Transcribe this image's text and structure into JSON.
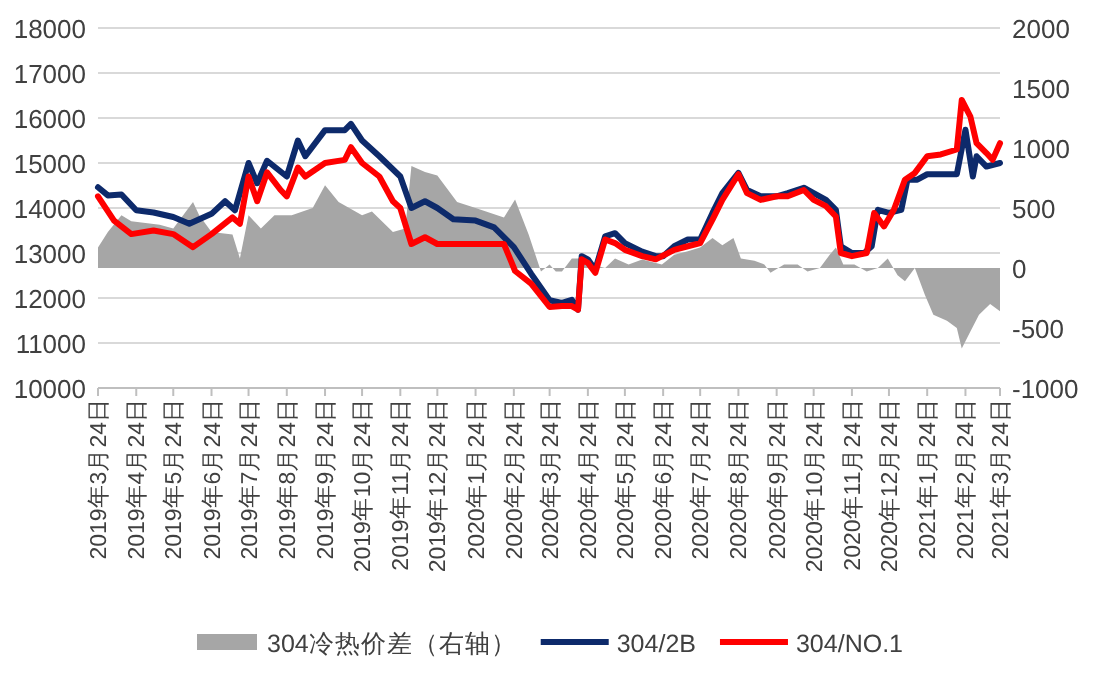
{
  "chart_data": {
    "type": "line",
    "grid": "y",
    "legend": "bottom",
    "xlim": [
      "2019-03-24",
      "2021-03-24"
    ],
    "xticks": [
      {
        "value": "2019-03-24",
        "label": "2019年3月24日"
      },
      {
        "value": "2019-04-24",
        "label": "2019年4月24日"
      },
      {
        "value": "2019-05-24",
        "label": "2019年5月24日"
      },
      {
        "value": "2019-06-24",
        "label": "2019年6月24日"
      },
      {
        "value": "2019-07-24",
        "label": "2019年7月24日"
      },
      {
        "value": "2019-08-24",
        "label": "2019年8月24日"
      },
      {
        "value": "2019-09-24",
        "label": "2019年9月24日"
      },
      {
        "value": "2019-10-24",
        "label": "2019年10月24日"
      },
      {
        "value": "2019-11-24",
        "label": "2019年11月24日"
      },
      {
        "value": "2019-12-24",
        "label": "2019年12月24日"
      },
      {
        "value": "2020-01-24",
        "label": "2020年1月24日"
      },
      {
        "value": "2020-02-24",
        "label": "2020年2月24日"
      },
      {
        "value": "2020-03-24",
        "label": "2020年3月24日"
      },
      {
        "value": "2020-04-24",
        "label": "2020年4月24日"
      },
      {
        "value": "2020-05-24",
        "label": "2020年5月24日"
      },
      {
        "value": "2020-06-24",
        "label": "2020年6月24日"
      },
      {
        "value": "2020-07-24",
        "label": "2020年7月24日"
      },
      {
        "value": "2020-08-24",
        "label": "2020年8月24日"
      },
      {
        "value": "2020-09-24",
        "label": "2020年9月24日"
      },
      {
        "value": "2020-10-24",
        "label": "2020年10月24日"
      },
      {
        "value": "2020-11-24",
        "label": "2020年11月24日"
      },
      {
        "value": "2020-12-24",
        "label": "2020年12月24日"
      },
      {
        "value": "2021-01-24",
        "label": "2021年1月24日"
      },
      {
        "value": "2021-02-24",
        "label": "2021年2月24日"
      },
      {
        "value": "2021-03-24",
        "label": "2021年3月24日"
      }
    ],
    "ylim": [
      10000,
      18000
    ],
    "yticks": [
      10000,
      11000,
      12000,
      13000,
      14000,
      15000,
      16000,
      17000,
      18000
    ],
    "y2lim": [
      -1000,
      2000
    ],
    "y2ticks": [
      -1000,
      -500,
      0,
      500,
      1000,
      1500,
      2000
    ],
    "series": [
      {
        "name": "304冷热价差（右轴）",
        "type": "area",
        "axis": "y2",
        "color": "#a6a6a6",
        "x": [
          "2019-03-24",
          "2019-04-01",
          "2019-04-12",
          "2019-04-20",
          "2019-05-13",
          "2019-05-24",
          "2019-06-09",
          "2019-06-14",
          "2019-06-24",
          "2019-07-11",
          "2019-07-17",
          "2019-07-24",
          "2019-08-03",
          "2019-08-14",
          "2019-08-28",
          "2019-09-14",
          "2019-09-24",
          "2019-10-05",
          "2019-10-24",
          "2019-11-01",
          "2019-11-18",
          "2019-11-28",
          "2019-12-03",
          "2019-12-14",
          "2019-12-24",
          "2020-01-09",
          "2020-01-24",
          "2020-02-16",
          "2020-02-25",
          "2020-03-07",
          "2020-03-17",
          "2020-03-24",
          "2020-03-29",
          "2020-04-03",
          "2020-04-11",
          "2020-04-19",
          "2020-04-27",
          "2020-05-08",
          "2020-05-16",
          "2020-05-27",
          "2020-06-07",
          "2020-06-23",
          "2020-07-03",
          "2020-07-14",
          "2020-07-24",
          "2020-08-03",
          "2020-08-11",
          "2020-08-20",
          "2020-08-26",
          "2020-09-06",
          "2020-09-14",
          "2020-09-19",
          "2020-09-30",
          "2020-10-11",
          "2020-10-19",
          "2020-10-29",
          "2020-11-06",
          "2020-11-11",
          "2020-11-17",
          "2020-11-26",
          "2020-12-06",
          "2020-12-15",
          "2020-12-23",
          "2020-12-31",
          "2021-01-06",
          "2021-01-14",
          "2021-01-22",
          "2021-01-29",
          "2021-02-09",
          "2021-02-17",
          "2021-02-21",
          "2021-02-28",
          "2021-03-07",
          "2021-03-16",
          "2021-03-24"
        ],
        "values": [
          170,
          300,
          440,
          390,
          360,
          330,
          550,
          440,
          300,
          280,
          80,
          440,
          330,
          440,
          440,
          500,
          690,
          550,
          440,
          470,
          300,
          330,
          850,
          800,
          770,
          550,
          500,
          420,
          570,
          280,
          -30,
          30,
          -30,
          -30,
          80,
          80,
          30,
          0,
          80,
          30,
          70,
          30,
          110,
          140,
          170,
          250,
          190,
          250,
          80,
          60,
          30,
          -40,
          30,
          30,
          -30,
          0,
          110,
          170,
          30,
          30,
          -30,
          0,
          80,
          -60,
          -110,
          0,
          -220,
          -390,
          -440,
          -500,
          -670,
          -530,
          -390,
          -300,
          -360
        ]
      },
      {
        "name": "304/2B",
        "color": "#0d2a6b",
        "x": [
          "2019-03-24",
          "2019-04-01",
          "2019-04-12",
          "2019-04-24",
          "2019-05-08",
          "2019-05-24",
          "2019-06-06",
          "2019-06-24",
          "2019-07-05",
          "2019-07-13",
          "2019-07-24",
          "2019-07-31",
          "2019-08-08",
          "2019-08-24",
          "2019-09-02",
          "2019-09-08",
          "2019-09-24",
          "2019-10-10",
          "2019-10-15",
          "2019-10-24",
          "2019-11-07",
          "2019-11-24",
          "2019-12-03",
          "2019-12-14",
          "2019-12-24",
          "2020-01-06",
          "2020-01-24",
          "2020-02-08",
          "2020-02-24",
          "2020-03-09",
          "2020-03-24",
          "2020-04-03",
          "2020-04-11",
          "2020-04-16",
          "2020-04-19",
          "2020-04-24",
          "2020-04-30",
          "2020-05-08",
          "2020-05-16",
          "2020-05-24",
          "2020-06-07",
          "2020-06-18",
          "2020-06-24",
          "2020-07-03",
          "2020-07-14",
          "2020-07-24",
          "2020-08-03",
          "2020-08-11",
          "2020-08-24",
          "2020-08-31",
          "2020-09-11",
          "2020-09-24",
          "2020-10-03",
          "2020-10-16",
          "2020-10-24",
          "2020-11-03",
          "2020-11-11",
          "2020-11-15",
          "2020-11-24",
          "2020-12-04",
          "2020-12-10",
          "2020-12-15",
          "2020-12-24",
          "2021-01-03",
          "2021-01-08",
          "2021-01-16",
          "2021-01-24",
          "2021-02-04",
          "2021-02-17",
          "2021-02-24",
          "2021-03-02",
          "2021-03-05",
          "2021-03-13",
          "2021-03-24"
        ],
        "values": [
          14460,
          14280,
          14300,
          13950,
          13900,
          13800,
          13650,
          13870,
          14150,
          13950,
          15000,
          14550,
          15050,
          14700,
          15500,
          15150,
          15730,
          15730,
          15870,
          15500,
          15150,
          14700,
          14000,
          14150,
          14000,
          13750,
          13720,
          13570,
          13130,
          12540,
          11950,
          11890,
          11960,
          11740,
          12930,
          12860,
          12630,
          13370,
          13440,
          13220,
          13030,
          12930,
          12930,
          13150,
          13300,
          13300,
          13890,
          14330,
          14780,
          14400,
          14260,
          14260,
          14330,
          14450,
          14330,
          14180,
          13960,
          13150,
          13000,
          13000,
          13150,
          13960,
          13890,
          13960,
          14630,
          14630,
          14750,
          14750,
          14750,
          15740,
          14700,
          15150,
          14920,
          15000
        ]
      },
      {
        "name": "304/NO.1",
        "color": "#ff0000",
        "x": [
          "2019-03-24",
          "2019-04-06",
          "2019-04-20",
          "2019-05-08",
          "2019-05-24",
          "2019-06-09",
          "2019-06-24",
          "2019-07-11",
          "2019-07-17",
          "2019-07-24",
          "2019-07-31",
          "2019-08-08",
          "2019-08-19",
          "2019-08-24",
          "2019-09-02",
          "2019-09-08",
          "2019-09-24",
          "2019-10-10",
          "2019-10-15",
          "2019-10-24",
          "2019-11-07",
          "2019-11-18",
          "2019-11-24",
          "2019-12-03",
          "2019-12-14",
          "2019-12-24",
          "2020-01-24",
          "2020-02-16",
          "2020-02-25",
          "2020-03-09",
          "2020-03-24",
          "2020-04-03",
          "2020-04-11",
          "2020-04-16",
          "2020-04-19",
          "2020-04-24",
          "2020-04-30",
          "2020-05-08",
          "2020-05-16",
          "2020-05-24",
          "2020-06-07",
          "2020-06-18",
          "2020-07-03",
          "2020-07-14",
          "2020-07-24",
          "2020-08-03",
          "2020-08-11",
          "2020-08-24",
          "2020-08-31",
          "2020-09-11",
          "2020-09-24",
          "2020-10-03",
          "2020-10-16",
          "2020-10-24",
          "2020-11-03",
          "2020-11-11",
          "2020-11-15",
          "2020-11-24",
          "2020-12-06",
          "2020-12-12",
          "2020-12-20",
          "2020-12-28",
          "2021-01-06",
          "2021-01-14",
          "2021-01-24",
          "2021-02-04",
          "2021-02-17",
          "2021-02-21",
          "2021-02-28",
          "2021-03-05",
          "2021-03-13",
          "2021-03-18",
          "2021-03-24"
        ],
        "values": [
          14260,
          13720,
          13420,
          13500,
          13420,
          13130,
          13420,
          13790,
          13650,
          14700,
          14150,
          14790,
          14400,
          14260,
          14900,
          14700,
          15000,
          15070,
          15350,
          15000,
          14700,
          14150,
          14000,
          13200,
          13350,
          13200,
          13200,
          13200,
          12600,
          12320,
          11800,
          11820,
          11820,
          11740,
          12860,
          12780,
          12560,
          13300,
          13220,
          13070,
          12930,
          12860,
          13070,
          13150,
          13220,
          13740,
          14180,
          14750,
          14330,
          14180,
          14260,
          14260,
          14400,
          14180,
          14040,
          13810,
          13000,
          12930,
          13000,
          13890,
          13590,
          13960,
          14630,
          14780,
          15150,
          15190,
          15300,
          16400,
          16030,
          15440,
          15220,
          15070,
          15440
        ]
      }
    ]
  }
}
